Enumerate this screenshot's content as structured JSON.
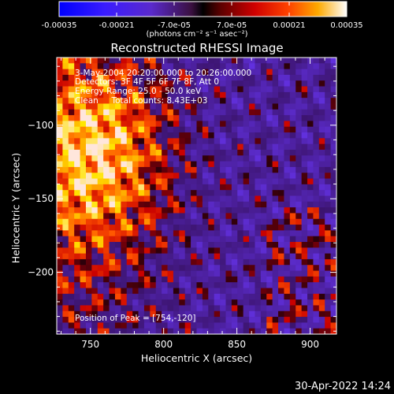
{
  "chart_data": {
    "type": "heatmap",
    "title": "Reconstructed RHESSI Image",
    "xlabel": "Heliocentric X (arcsec)",
    "ylabel": "Heliocentric Y (arcsec)",
    "xlim": [
      727,
      918
    ],
    "ylim": [
      -242,
      -54
    ],
    "x_ticks": [
      750,
      800,
      850,
      900
    ],
    "y_ticks": [
      -100,
      -150,
      -200
    ],
    "colorbar": {
      "unit_label": "(photons cm⁻² s⁻¹ asec⁻²)",
      "range": [
        -0.00035,
        0.00035
      ],
      "tick_labels": [
        "-0.00035",
        "-0.00021",
        "-7.0e-05",
        "7.0e-05",
        "0.00021",
        "0.00035"
      ],
      "tick_values": [
        -0.00035,
        -0.00021,
        -7e-05,
        7e-05,
        0.00021,
        0.00035
      ]
    },
    "annotations": {
      "time_range": "3-May-2004 20:20:00.000 to 20:26:00.000",
      "detectors": "Detectors: 3F 4F 5F 6F 7F 8F, Att 0",
      "energy_range": "Energy Range: 25.0 - 50.0 keV",
      "clean": "Clean     Total counts: 8.43E+03",
      "peak": "Position of Peak = [754,-120]"
    },
    "peak_position": [
      754,
      -120
    ]
  },
  "timestamp": "30-Apr-2022 14:24"
}
